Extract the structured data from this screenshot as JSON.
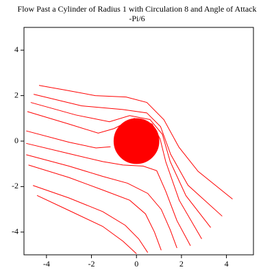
{
  "chart_data": {
    "type": "line",
    "title": [
      "Flow Past a Cylinder of Radius 1 with Circulation 8 and Angle of Attack",
      "-Pi/6"
    ],
    "xlim": [
      -5,
      5.2
    ],
    "ylim": [
      -5,
      5
    ],
    "xticks": [
      -4,
      -2,
      0,
      2,
      4
    ],
    "yticks": [
      -4,
      -2,
      0,
      2,
      4
    ],
    "line_color": "#ff0000",
    "cylinder": {
      "x": 0,
      "y": 0,
      "radius": 1,
      "color": "#ff0000"
    },
    "series": [
      {
        "x": [
          -4.33,
          -3.2,
          -1.83,
          -0.46,
          0.46,
          1.22,
          1.89,
          2.74,
          4.27
        ],
        "y": [
          2.45,
          2.25,
          2.0,
          1.94,
          1.7,
          0.94,
          -0.27,
          -1.33,
          -2.55
        ]
      },
      {
        "x": [
          -4.57,
          -2.44,
          -0.61,
          0.46,
          1.07,
          1.52,
          2.29,
          3.81
        ],
        "y": [
          2.06,
          1.55,
          1.39,
          1.24,
          0.64,
          -0.58,
          -1.94,
          -3.3
        ]
      },
      {
        "x": [
          -4.7,
          -2.7,
          -1.2,
          -0.3,
          0.6,
          1.15,
          1.5,
          2.2,
          3.3
        ],
        "y": [
          1.7,
          1.15,
          0.85,
          1.12,
          0.95,
          0.3,
          -0.9,
          -2.4,
          -3.8
        ]
      },
      {
        "x": [
          -4.85,
          -3.0,
          -1.7,
          -1.0,
          -0.1,
          0.7,
          1.05,
          1.3,
          1.9,
          2.9
        ],
        "y": [
          1.3,
          0.75,
          0.35,
          0.55,
          1.0,
          0.75,
          0.1,
          -0.9,
          -2.6,
          -4.3
        ]
      },
      {
        "x": [
          -4.9,
          -3.0,
          -1.8,
          -1.15
        ],
        "y": [
          0.45,
          -0.05,
          -0.3,
          -0.25
        ]
      },
      {
        "x": [
          -4.9,
          -3.0,
          -1.5,
          -0.6,
          0.3,
          0.9,
          1.3,
          1.8,
          2.4
        ],
        "y": [
          -0.1,
          -0.55,
          -0.9,
          -1.05,
          -1.1,
          -1.3,
          -2.2,
          -3.5,
          -4.6
        ]
      },
      {
        "x": [
          -4.9,
          -3.0,
          -1.5,
          -0.4,
          0.5,
          1.1,
          1.5,
          1.8
        ],
        "y": [
          -0.6,
          -1.1,
          -1.55,
          -1.85,
          -2.3,
          -3.0,
          -3.9,
          -4.7
        ]
      },
      {
        "x": [
          -4.8,
          -3.0,
          -1.5,
          -0.3,
          0.4,
          0.8,
          1.1
        ],
        "y": [
          -1.05,
          -1.6,
          -2.15,
          -2.6,
          -3.2,
          -4.0,
          -4.8
        ]
      },
      {
        "x": [
          -4.6,
          -3.0,
          -1.5,
          -0.5,
          0.1,
          0.5
        ],
        "y": [
          -1.95,
          -2.5,
          -3.1,
          -3.7,
          -4.3,
          -4.9
        ]
      },
      {
        "x": [
          -4.42,
          -3.0,
          -1.5,
          -0.6,
          0.0
        ],
        "y": [
          -2.39,
          -3.05,
          -3.75,
          -4.4,
          -4.95
        ]
      }
    ]
  }
}
